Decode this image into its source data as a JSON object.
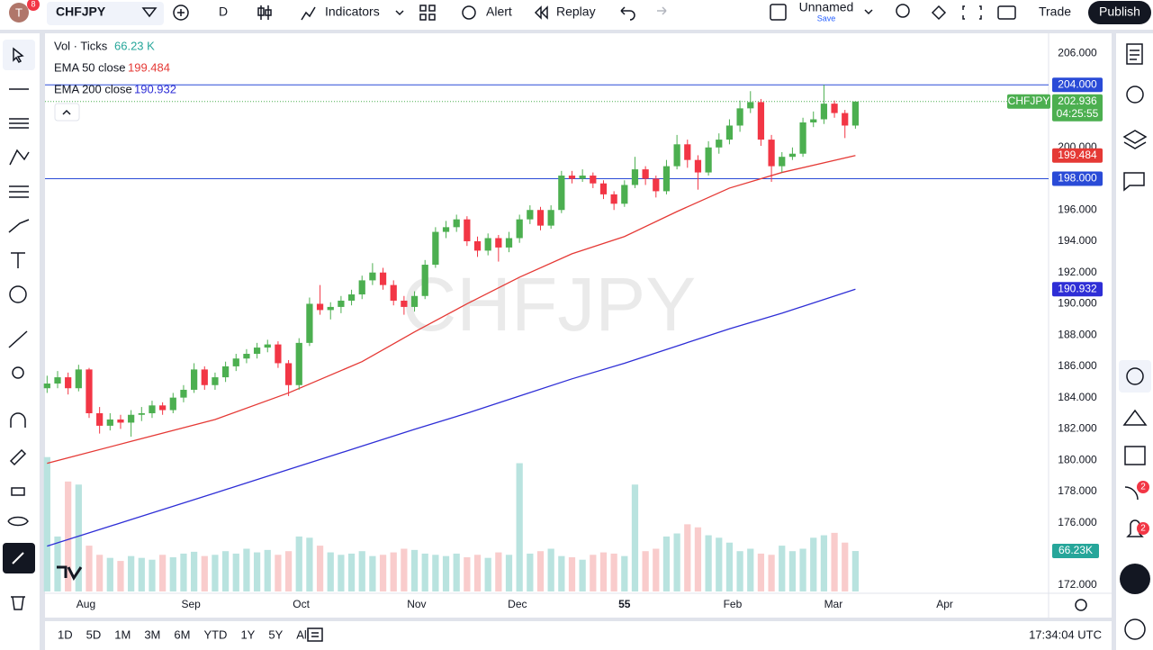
{
  "toolbar": {
    "avatar": "T",
    "notifications": "8",
    "symbol": "CHFJPY",
    "interval": "D",
    "indicators": "Indicators",
    "alert": "Alert",
    "replay": "Replay",
    "layout_name": "Unnamed",
    "save": "Save",
    "trade": "Trade",
    "publish": "Publish"
  },
  "sidebar": {
    "badges": [
      "2",
      "2"
    ]
  },
  "bottom_bar": {
    "ranges": [
      "1D",
      "5D",
      "1M",
      "3M",
      "6M",
      "YTD",
      "1Y",
      "5Y",
      "All"
    ],
    "time": "17:34:04 UTC"
  },
  "chart_data": {
    "type": "candlestick",
    "watermark": "CHFJPY",
    "symbol_label": "CHFJPY",
    "countdown": "04:25:55",
    "last_price": 202.936,
    "up_color": "#4caf50",
    "down_color": "#f23645",
    "volume_up_color": "#b9e3df",
    "volume_down_color": "#f9cccc",
    "xlim": [
      -0.2,
      95.4
    ],
    "ylim": [
      171.6,
      207.3
    ],
    "grid": false,
    "xticks": [
      {
        "value": 3.7,
        "label": "Aug"
      },
      {
        "value": 13.7,
        "label": "Sep"
      },
      {
        "value": 24.2,
        "label": "Oct"
      },
      {
        "value": 35.2,
        "label": "Nov"
      },
      {
        "value": 44.8,
        "label": "Dec"
      },
      55.0,
      {
        "value": 65.3,
        "label": "Feb"
      },
      {
        "value": 74.9,
        "label": "Mar"
      },
      {
        "value": 85.5,
        "label": "Apr"
      }
    ],
    "yticks": [
      {
        "value": 206,
        "label": "206.000"
      },
      {
        "value": 200,
        "label": "200.000"
      },
      {
        "value": 196,
        "label": "196.000"
      },
      {
        "value": 194,
        "label": "194.000"
      },
      {
        "value": 192,
        "label": "192.000"
      },
      {
        "value": 190,
        "label": "190.000"
      },
      {
        "value": 188,
        "label": "188.000"
      },
      {
        "value": 186,
        "label": "186.000"
      },
      {
        "value": 184,
        "label": "184.000"
      },
      {
        "value": 182,
        "label": "182.000"
      },
      {
        "value": 180,
        "label": "180.000"
      },
      {
        "value": 178,
        "label": "178.000"
      },
      {
        "value": 176,
        "label": "176.000"
      },
      {
        "value": 172,
        "label": "172.000"
      }
    ],
    "hlines": [
      {
        "value": 204,
        "label": "204.000"
      },
      {
        "value": 198,
        "label": "198.000"
      }
    ],
    "hline_color": "#2a4bd7",
    "open": [
      184.6,
      184.9,
      185.3,
      184.6,
      185.8,
      183.0,
      182.2,
      182.6,
      182.4,
      182.9,
      183.0,
      183.5,
      183.2,
      184.0,
      184.5,
      185.8,
      184.8,
      185.3,
      186.0,
      186.5,
      186.8,
      187.2,
      187.4,
      186.2,
      184.8,
      187.5,
      190.0,
      189.6,
      189.8,
      190.2,
      190.6,
      191.5,
      192.0,
      191.2,
      190.2,
      189.8,
      190.5,
      192.5,
      194.6,
      194.9,
      195.4,
      194.0,
      193.4,
      194.2,
      193.6,
      194.2,
      195.4,
      196.0,
      195.0,
      196.0,
      198.2,
      198.0,
      198.2,
      197.7,
      197.0,
      196.4,
      197.6,
      198.6,
      198.0,
      197.2,
      198.8,
      200.2,
      199.2,
      198.4,
      200.0,
      200.5,
      201.4,
      202.5,
      202.9,
      200.5,
      198.8,
      199.4,
      199.6,
      201.6,
      201.8,
      202.8,
      202.2,
      201.4
    ],
    "high": [
      185.4,
      185.7,
      185.6,
      186.1,
      185.9,
      183.4,
      183.0,
      182.9,
      183.2,
      183.4,
      183.8,
      183.7,
      184.3,
      184.8,
      186.2,
      186.0,
      185.6,
      186.3,
      186.8,
      187.1,
      187.5,
      187.7,
      187.6,
      186.4,
      187.8,
      190.4,
      191.2,
      190.1,
      190.5,
      190.9,
      191.8,
      192.6,
      192.3,
      191.5,
      190.5,
      190.8,
      192.8,
      194.9,
      195.3,
      195.7,
      195.6,
      194.3,
      194.5,
      194.4,
      194.6,
      195.7,
      196.3,
      196.2,
      196.3,
      198.5,
      198.5,
      198.6,
      198.4,
      197.9,
      197.2,
      197.9,
      199.4,
      198.8,
      198.2,
      199.2,
      200.8,
      200.5,
      199.5,
      200.4,
      200.9,
      201.8,
      203.0,
      203.6,
      203.1,
      200.8,
      199.7,
      200.0,
      201.9,
      202.3,
      204.0,
      203.0,
      202.4,
      202.95
    ],
    "low": [
      184.3,
      184.6,
      184.2,
      184.4,
      182.7,
      181.7,
      181.9,
      182.0,
      181.5,
      182.5,
      182.7,
      182.9,
      183.0,
      183.7,
      184.3,
      184.5,
      184.5,
      185.0,
      185.7,
      186.2,
      186.5,
      186.9,
      185.9,
      184.1,
      184.5,
      187.3,
      189.3,
      189.0,
      189.4,
      189.9,
      190.3,
      191.2,
      190.9,
      189.9,
      189.3,
      189.5,
      190.3,
      192.3,
      194.2,
      194.6,
      193.7,
      193.0,
      193.1,
      192.7,
      193.3,
      193.9,
      195.1,
      194.7,
      194.8,
      195.8,
      197.7,
      197.8,
      197.4,
      196.7,
      196.0,
      196.2,
      197.4,
      197.6,
      196.8,
      197.0,
      198.6,
      198.7,
      197.3,
      198.2,
      199.6,
      200.2,
      201.0,
      202.2,
      200.1,
      197.8,
      198.4,
      199.2,
      199.4,
      201.3,
      201.5,
      201.9,
      200.6,
      201.2
    ],
    "close": [
      184.9,
      185.3,
      184.6,
      185.8,
      183.0,
      182.2,
      182.6,
      182.4,
      182.9,
      183.0,
      183.5,
      183.2,
      184.0,
      184.5,
      185.8,
      184.8,
      185.3,
      186.0,
      186.5,
      186.8,
      187.2,
      187.4,
      186.2,
      184.8,
      187.5,
      190.0,
      189.6,
      189.8,
      190.2,
      190.6,
      191.5,
      192.0,
      191.2,
      190.2,
      189.8,
      190.5,
      192.5,
      194.6,
      194.9,
      195.4,
      194.0,
      193.4,
      194.2,
      193.6,
      194.2,
      195.4,
      196.0,
      195.0,
      196.0,
      198.2,
      198.0,
      198.2,
      197.7,
      197.0,
      196.4,
      197.6,
      198.6,
      198.0,
      197.2,
      198.8,
      200.2,
      199.2,
      198.4,
      200.0,
      200.5,
      201.4,
      202.5,
      202.9,
      200.5,
      198.8,
      199.4,
      199.6,
      201.6,
      201.8,
      202.8,
      202.2,
      201.4,
      202.936
    ],
    "volume": {
      "name": "Vol · Ticks",
      "legend_value": "66.23 K",
      "axis_label": "66.23K",
      "color": "#26a69a",
      "vlim": [
        0,
        280
      ],
      "values": [
        220,
        90,
        180,
        175,
        75,
        60,
        55,
        50,
        58,
        55,
        52,
        60,
        56,
        62,
        65,
        58,
        60,
        66,
        62,
        70,
        64,
        68,
        60,
        66,
        90,
        88,
        75,
        64,
        60,
        62,
        66,
        58,
        60,
        64,
        70,
        68,
        62,
        60,
        58,
        62,
        56,
        60,
        55,
        64,
        60,
        210,
        62,
        66,
        70,
        58,
        56,
        52,
        60,
        64,
        62,
        58,
        175,
        66,
        70,
        90,
        95,
        110,
        105,
        92,
        88,
        80,
        66,
        70,
        62,
        60,
        75,
        66,
        70,
        88,
        92,
        96,
        80,
        66.23
      ]
    },
    "series": [
      {
        "name": "EMA 50 close",
        "color": "#e53935",
        "x": [
          0,
          8,
          16,
          23,
          30,
          35,
          40,
          45,
          50,
          55,
          60,
          65,
          70,
          77
        ],
        "values": [
          179.8,
          181.2,
          182.6,
          184.3,
          186.3,
          188.2,
          190.0,
          191.7,
          193.2,
          194.3,
          195.9,
          197.4,
          198.4,
          199.484
        ]
      },
      {
        "name": "EMA 200 close",
        "color": "#2e2ed6",
        "x": [
          0,
          8,
          16,
          23,
          30,
          35,
          40,
          45,
          50,
          55,
          60,
          65,
          70,
          77
        ],
        "values": [
          174.5,
          176.2,
          177.9,
          179.4,
          180.9,
          181.97,
          183.0,
          184.1,
          185.2,
          186.2,
          187.3,
          188.4,
          189.4,
          190.932
        ]
      }
    ]
  }
}
